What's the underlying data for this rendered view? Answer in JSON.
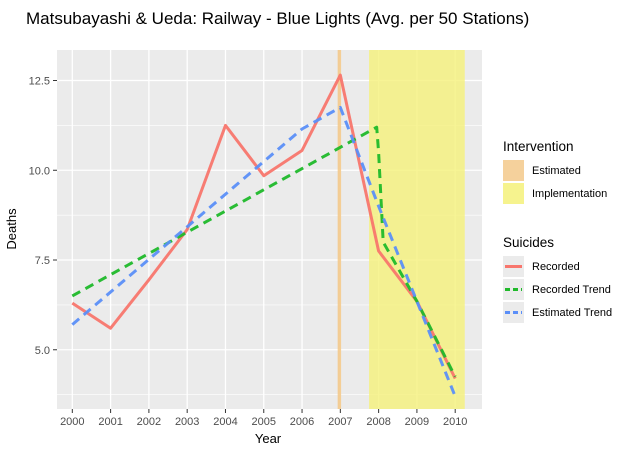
{
  "chart_data": {
    "type": "line",
    "title": "Matsubayashi & Ueda: Railway - Blue Lights (Avg. per 50 Stations)",
    "xlabel": "Year",
    "ylabel": "Deaths",
    "x": [
      2000,
      2001,
      2002,
      2003,
      2004,
      2005,
      2006,
      2007,
      2008,
      2009,
      2010
    ],
    "x_ticks": [
      "2000",
      "2001",
      "2002",
      "2003",
      "2004",
      "2005",
      "2006",
      "2007",
      "2008",
      "2009",
      "2010"
    ],
    "y_ticks": [
      "5.0",
      "7.5",
      "10.0",
      "12.5"
    ],
    "y_tick_values": [
      5.0,
      7.5,
      10.0,
      12.5
    ],
    "xlim": [
      1999.6,
      2010.7
    ],
    "ylim": [
      3.35,
      13.35
    ],
    "grid": true,
    "legend_position": "right",
    "series": [
      {
        "name": "Recorded",
        "color": "#F8766D",
        "dash": "solid",
        "points": [
          [
            2000,
            6.3
          ],
          [
            2001,
            5.6
          ],
          [
            2002,
            6.95
          ],
          [
            2003,
            8.35
          ],
          [
            2004,
            11.25
          ],
          [
            2005,
            9.85
          ],
          [
            2006,
            10.55
          ],
          [
            2007,
            12.65
          ],
          [
            2008,
            7.75
          ],
          [
            2009,
            6.35
          ],
          [
            2010,
            4.2
          ]
        ]
      },
      {
        "name": "Recorded Trend",
        "color": "#1FB92A",
        "dash": "dashed",
        "points": [
          [
            2000,
            6.5
          ],
          [
            2007.95,
            11.2
          ],
          [
            2008,
            10.5
          ],
          [
            2008.12,
            8.0
          ],
          [
            2009,
            6.35
          ],
          [
            2010,
            4.25
          ]
        ]
      },
      {
        "name": "Estimated Trend",
        "color": "#5B8FF8",
        "dash": "dashed",
        "points": [
          [
            2000,
            5.7
          ],
          [
            2006,
            11.15
          ],
          [
            2007,
            11.75
          ],
          [
            2008,
            9.0
          ],
          [
            2009,
            6.35
          ],
          [
            2010,
            3.7
          ]
        ]
      }
    ],
    "intervention": {
      "title": "Intervention",
      "items": [
        {
          "name": "Estimated",
          "color": "#F3C98B",
          "x_start": 2006.93,
          "x_end": 2007.02
        },
        {
          "name": "Implementation",
          "color": "#F5F17A",
          "x_start": 2007.75,
          "x_end": 2010.25
        }
      ]
    },
    "suicides_legend_title": "Suicides"
  }
}
